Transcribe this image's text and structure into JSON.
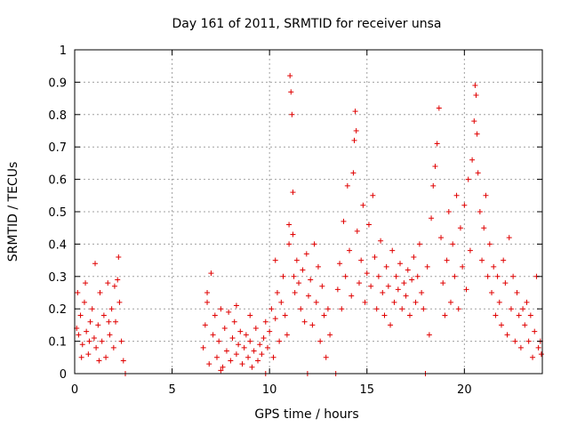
{
  "chart_data": {
    "type": "scatter",
    "title": "Day 161 of 2011, SRMTID for receiver unsa",
    "xlabel": "GPS time / hours",
    "ylabel": "SRMTID / TECUs",
    "xlim": [
      0,
      24
    ],
    "ylim": [
      0,
      1
    ],
    "xticks": [
      0,
      5,
      10,
      15,
      20
    ],
    "yticks": [
      0,
      0.1,
      0.2,
      0.3,
      0.4,
      0.5,
      0.6,
      0.7,
      0.8,
      0.9,
      1
    ],
    "ytick_labels": [
      "0",
      "0.1",
      "0.2",
      "0.3",
      "0.4",
      "0.5",
      "0.6",
      "0.7",
      "0.8",
      "0.9",
      "1"
    ],
    "grid": true,
    "marker": "+",
    "color": "#e00000",
    "series": [
      {
        "name": "SRMTID",
        "points": [
          [
            0.1,
            0.14
          ],
          [
            0.2,
            0.12
          ],
          [
            0.3,
            0.18
          ],
          [
            0.4,
            0.09
          ],
          [
            0.5,
            0.22
          ],
          [
            0.6,
            0.13
          ],
          [
            0.7,
            0.06
          ],
          [
            0.8,
            0.16
          ],
          [
            0.9,
            0.2
          ],
          [
            1.0,
            0.11
          ],
          [
            1.05,
            0.34
          ],
          [
            1.1,
            0.08
          ],
          [
            1.2,
            0.15
          ],
          [
            1.3,
            0.25
          ],
          [
            1.4,
            0.1
          ],
          [
            1.5,
            0.18
          ],
          [
            1.6,
            0.05
          ],
          [
            1.7,
            0.28
          ],
          [
            1.8,
            0.12
          ],
          [
            1.9,
            0.2
          ],
          [
            2.0,
            0.08
          ],
          [
            2.1,
            0.16
          ],
          [
            2.2,
            0.29
          ],
          [
            2.25,
            0.36
          ],
          [
            2.3,
            0.22
          ],
          [
            2.4,
            0.1
          ],
          [
            2.5,
            0.04
          ],
          [
            2.6,
            0.0
          ],
          [
            0.15,
            0.25
          ],
          [
            0.35,
            0.05
          ],
          [
            0.55,
            0.28
          ],
          [
            0.75,
            0.1
          ],
          [
            1.25,
            0.04
          ],
          [
            1.75,
            0.16
          ],
          [
            2.05,
            0.27
          ],
          [
            6.6,
            0.08
          ],
          [
            6.7,
            0.15
          ],
          [
            6.8,
            0.22
          ],
          [
            6.9,
            0.03
          ],
          [
            7.0,
            0.31
          ],
          [
            7.1,
            0.12
          ],
          [
            7.2,
            0.18
          ],
          [
            7.3,
            0.05
          ],
          [
            7.4,
            0.1
          ],
          [
            7.5,
            0.2
          ],
          [
            7.6,
            0.02
          ],
          [
            7.7,
            0.14
          ],
          [
            7.8,
            0.07
          ],
          [
            7.9,
            0.19
          ],
          [
            8.0,
            0.04
          ],
          [
            8.1,
            0.11
          ],
          [
            8.2,
            0.16
          ],
          [
            8.3,
            0.06
          ],
          [
            8.4,
            0.09
          ],
          [
            8.5,
            0.13
          ],
          [
            8.6,
            0.03
          ],
          [
            8.7,
            0.08
          ],
          [
            8.8,
            0.12
          ],
          [
            8.9,
            0.05
          ],
          [
            9.0,
            0.1
          ],
          [
            9.1,
            0.02
          ],
          [
            9.2,
            0.07
          ],
          [
            9.3,
            0.14
          ],
          [
            9.4,
            0.04
          ],
          [
            9.5,
            0.09
          ],
          [
            9.6,
            0.06
          ],
          [
            9.7,
            0.11
          ],
          [
            9.8,
            0.16
          ],
          [
            9.9,
            0.08
          ],
          [
            10.0,
            0.13
          ],
          [
            10.1,
            0.2
          ],
          [
            10.2,
            0.05
          ],
          [
            10.3,
            0.17
          ],
          [
            10.4,
            0.25
          ],
          [
            10.5,
            0.1
          ],
          [
            10.6,
            0.22
          ],
          [
            10.7,
            0.3
          ],
          [
            10.8,
            0.18
          ],
          [
            10.9,
            0.12
          ],
          [
            6.8,
            0.25
          ],
          [
            7.5,
            0.01
          ],
          [
            8.3,
            0.21
          ],
          [
            9.0,
            0.18
          ],
          [
            9.8,
            0.0
          ],
          [
            10.3,
            0.35
          ],
          [
            11.0,
            0.4
          ],
          [
            11.05,
            0.92
          ],
          [
            11.1,
            0.87
          ],
          [
            11.15,
            0.8
          ],
          [
            11.2,
            0.56
          ],
          [
            11.25,
            0.3
          ],
          [
            11.3,
            0.25
          ],
          [
            11.4,
            0.35
          ],
          [
            11.5,
            0.28
          ],
          [
            11.6,
            0.2
          ],
          [
            11.7,
            0.32
          ],
          [
            11.8,
            0.16
          ],
          [
            11.9,
            0.37
          ],
          [
            12.0,
            0.24
          ],
          [
            12.1,
            0.29
          ],
          [
            12.2,
            0.15
          ],
          [
            12.3,
            0.4
          ],
          [
            12.4,
            0.22
          ],
          [
            12.5,
            0.33
          ],
          [
            12.6,
            0.1
          ],
          [
            12.7,
            0.27
          ],
          [
            12.8,
            0.18
          ],
          [
            12.9,
            0.05
          ],
          [
            13.0,
            0.2
          ],
          [
            13.1,
            0.12
          ],
          [
            11.0,
            0.46
          ],
          [
            11.2,
            0.43
          ],
          [
            11.95,
            0.0
          ],
          [
            13.4,
            0.0
          ],
          [
            13.5,
            0.26
          ],
          [
            13.6,
            0.34
          ],
          [
            13.7,
            0.2
          ],
          [
            13.8,
            0.47
          ],
          [
            13.9,
            0.3
          ],
          [
            14.0,
            0.58
          ],
          [
            14.1,
            0.38
          ],
          [
            14.2,
            0.24
          ],
          [
            14.3,
            0.62
          ],
          [
            14.35,
            0.72
          ],
          [
            14.4,
            0.81
          ],
          [
            14.45,
            0.75
          ],
          [
            14.5,
            0.44
          ],
          [
            14.6,
            0.28
          ],
          [
            14.7,
            0.35
          ],
          [
            14.8,
            0.52
          ],
          [
            14.9,
            0.22
          ],
          [
            15.0,
            0.31
          ],
          [
            15.1,
            0.46
          ],
          [
            15.2,
            0.27
          ],
          [
            15.3,
            0.55
          ],
          [
            15.4,
            0.36
          ],
          [
            15.5,
            0.2
          ],
          [
            15.6,
            0.3
          ],
          [
            15.7,
            0.41
          ],
          [
            15.8,
            0.25
          ],
          [
            15.9,
            0.18
          ],
          [
            16.0,
            0.33
          ],
          [
            16.1,
            0.27
          ],
          [
            16.2,
            0.15
          ],
          [
            16.3,
            0.38
          ],
          [
            16.4,
            0.22
          ],
          [
            16.5,
            0.3
          ],
          [
            16.6,
            0.26
          ],
          [
            16.7,
            0.34
          ],
          [
            16.8,
            0.2
          ],
          [
            16.9,
            0.28
          ],
          [
            17.0,
            0.24
          ],
          [
            17.1,
            0.32
          ],
          [
            17.2,
            0.18
          ],
          [
            17.3,
            0.29
          ],
          [
            17.4,
            0.36
          ],
          [
            17.5,
            0.22
          ],
          [
            17.6,
            0.3
          ],
          [
            17.7,
            0.4
          ],
          [
            17.8,
            0.25
          ],
          [
            17.9,
            0.2
          ],
          [
            18.0,
            0.0
          ],
          [
            18.1,
            0.33
          ],
          [
            18.2,
            0.12
          ],
          [
            18.3,
            0.48
          ],
          [
            18.4,
            0.58
          ],
          [
            18.5,
            0.64
          ],
          [
            18.6,
            0.71
          ],
          [
            18.7,
            0.82
          ],
          [
            18.8,
            0.42
          ],
          [
            18.9,
            0.28
          ],
          [
            19.0,
            0.18
          ],
          [
            19.1,
            0.35
          ],
          [
            19.2,
            0.5
          ],
          [
            19.3,
            0.22
          ],
          [
            19.4,
            0.4
          ],
          [
            19.5,
            0.3
          ],
          [
            19.6,
            0.55
          ],
          [
            19.7,
            0.2
          ],
          [
            19.8,
            0.45
          ],
          [
            19.9,
            0.33
          ],
          [
            20.0,
            0.52
          ],
          [
            20.1,
            0.26
          ],
          [
            20.2,
            0.6
          ],
          [
            20.3,
            0.38
          ],
          [
            20.4,
            0.66
          ],
          [
            20.5,
            0.78
          ],
          [
            20.55,
            0.89
          ],
          [
            20.6,
            0.86
          ],
          [
            20.65,
            0.74
          ],
          [
            20.7,
            0.62
          ],
          [
            20.8,
            0.5
          ],
          [
            20.9,
            0.35
          ],
          [
            21.0,
            0.45
          ],
          [
            21.1,
            0.55
          ],
          [
            21.2,
            0.3
          ],
          [
            21.3,
            0.4
          ],
          [
            21.4,
            0.25
          ],
          [
            21.5,
            0.33
          ],
          [
            21.6,
            0.18
          ],
          [
            21.7,
            0.3
          ],
          [
            21.8,
            0.22
          ],
          [
            21.9,
            0.15
          ],
          [
            22.0,
            0.35
          ],
          [
            22.1,
            0.28
          ],
          [
            22.2,
            0.12
          ],
          [
            22.3,
            0.42
          ],
          [
            22.4,
            0.2
          ],
          [
            22.5,
            0.3
          ],
          [
            22.6,
            0.1
          ],
          [
            22.7,
            0.25
          ],
          [
            22.8,
            0.18
          ],
          [
            22.9,
            0.08
          ],
          [
            23.0,
            0.2
          ],
          [
            23.1,
            0.15
          ],
          [
            23.2,
            0.22
          ],
          [
            23.3,
            0.1
          ],
          [
            23.4,
            0.18
          ],
          [
            23.5,
            0.05
          ],
          [
            23.6,
            0.13
          ],
          [
            23.7,
            0.3
          ],
          [
            23.8,
            0.08
          ],
          [
            23.9,
            0.1
          ],
          [
            23.95,
            0.06
          ]
        ]
      }
    ]
  }
}
